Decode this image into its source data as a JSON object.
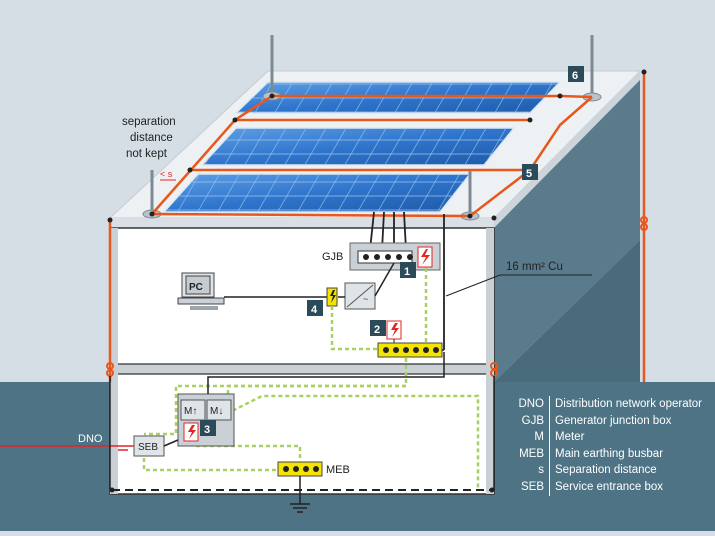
{
  "labels": {
    "separation_line1": "separation",
    "separation_line2": "distance",
    "separation_line3": "not kept",
    "s_marker": "< s",
    "gjb": "GJB",
    "cable": "16 mm² Cu",
    "pc": "PC",
    "meter_in": "M↑",
    "meter_out": "M↓",
    "seb": "SEB",
    "meb": "MEB",
    "dno": "DNO"
  },
  "numbers": {
    "n1": "1",
    "n2": "2",
    "n3": "3",
    "n4": "4",
    "n5": "5",
    "n6": "6"
  },
  "legend": [
    {
      "abbr": "DNO",
      "def": "Distribution network operator"
    },
    {
      "abbr": "GJB",
      "def": "Generator junction box"
    },
    {
      "abbr": "M",
      "def": "Meter"
    },
    {
      "abbr": "MEB",
      "def": "Main earthing busbar"
    },
    {
      "abbr": "s",
      "def": "Separation distance"
    },
    {
      "abbr": "SEB",
      "def": "Service entrance box"
    }
  ],
  "colors": {
    "sky": "#d6dee5",
    "ground": "#4d7385",
    "wall_side": "#5e7e8e",
    "roof": "#eef1f3",
    "panel": "#2e74c8",
    "conductor": "#e8581c",
    "earth": "#a8d062",
    "surge": "#e32626",
    "badge": "#2b4a5a"
  }
}
